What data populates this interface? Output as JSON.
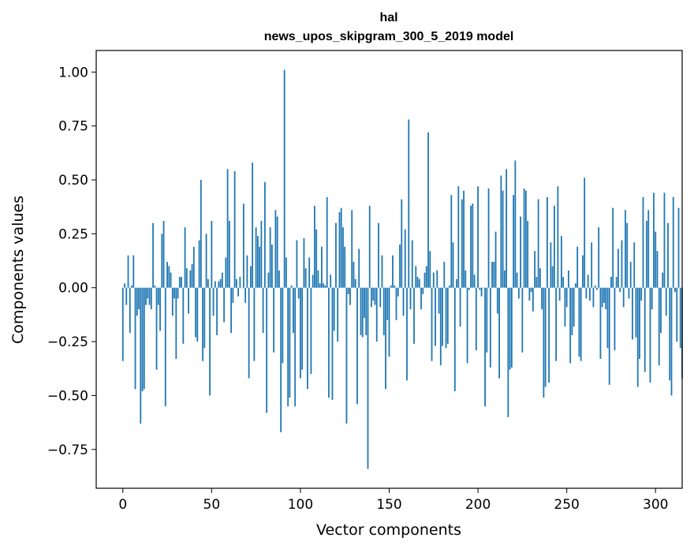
{
  "chart_data": {
    "type": "bar",
    "title": "hal",
    "subtitle": "news_upos_skipgram_300_5_2019 model",
    "xlabel": "Vector components",
    "ylabel": "Components values",
    "xlim": [
      -15,
      315
    ],
    "ylim": [
      -0.93,
      1.1
    ],
    "xticks": [
      0,
      50,
      100,
      150,
      200,
      250,
      300
    ],
    "xtick_labels": [
      "0",
      "50",
      "100",
      "150",
      "200",
      "250",
      "300"
    ],
    "yticks": [
      -0.75,
      -0.5,
      -0.25,
      0.0,
      0.25,
      0.5,
      0.75,
      1.0
    ],
    "ytick_labels": [
      "−0.75",
      "−0.50",
      "−0.25",
      "0.00",
      "0.25",
      "0.50",
      "0.75",
      "1.00"
    ],
    "grid": false,
    "bar_color": "#1f77b4",
    "values": [
      -0.34,
      0.02,
      -0.08,
      0.15,
      -0.21,
      0.01,
      0.15,
      -0.47,
      -0.13,
      -0.1,
      -0.63,
      -0.48,
      -0.47,
      -0.08,
      -0.05,
      -0.08,
      -0.1,
      0.3,
      0.01,
      -0.38,
      -0.08,
      -0.2,
      0.25,
      0.31,
      -0.55,
      0.12,
      0.1,
      0.07,
      -0.13,
      -0.05,
      -0.33,
      -0.05,
      0.05,
      0.05,
      -0.26,
      0.28,
      0.09,
      -0.12,
      0.08,
      0.11,
      0.19,
      -0.23,
      -0.25,
      0.22,
      0.5,
      -0.34,
      -0.28,
      0.25,
      0.04,
      -0.5,
      0.31,
      -0.13,
      0.03,
      -0.22,
      0.03,
      0.04,
      0.07,
      -0.16,
      0.14,
      0.55,
      0.31,
      -0.21,
      -0.07,
      0.54,
      0.04,
      -0.04,
      0.05,
      0.0,
      0.39,
      -0.07,
      0.15,
      -0.42,
      0.1,
      0.58,
      -0.34,
      0.28,
      0.24,
      0.19,
      0.31,
      -0.21,
      0.49,
      -0.58,
      0.07,
      0.28,
      0.2,
      -0.3,
      0.36,
      0.33,
      0.08,
      -0.67,
      -0.35,
      1.01,
      0.14,
      -0.55,
      -0.51,
      0.01,
      -0.21,
      -0.55,
      0.22,
      -0.05,
      -0.42,
      -0.38,
      0.23,
      0.09,
      -0.47,
      0.14,
      -0.4,
      0.06,
      0.38,
      0.27,
      0.08,
      0.02,
      0.19,
      0.02,
      0.01,
      0.42,
      -0.51,
      0.06,
      -0.52,
      -0.2,
      0.3,
      -0.25,
      0.35,
      0.37,
      0.28,
      0.19,
      -0.63,
      -0.03,
      -0.08,
      0.36,
      0.12,
      0.04,
      -0.54,
      0.18,
      -0.22,
      -0.23,
      -0.14,
      -0.22,
      -0.84,
      0.38,
      -0.09,
      -0.06,
      -0.08,
      -0.25,
      0.3,
      -0.09,
      0.15,
      -0.22,
      -0.47,
      -0.15,
      -0.32,
      0.01,
      0.15,
      0.01,
      -0.15,
      -0.04,
      0.2,
      0.41,
      -0.13,
      0.27,
      -0.43,
      0.78,
      -0.1,
      0.22,
      -0.26,
      0.1,
      0.05,
      0.04,
      -0.1,
      -0.03,
      0.07,
      0.1,
      0.72,
      0.17,
      -0.34,
      0.07,
      -0.27,
      0.08,
      -0.12,
      -0.36,
      -0.27,
      0.12,
      -0.28,
      -0.26,
      0.01,
      0.43,
      0.21,
      -0.48,
      0.04,
      0.47,
      -0.18,
      0.41,
      0.45,
      0.08,
      -0.35,
      -0.01,
      0.38,
      0.39,
      0.06,
      -0.29,
      0.47,
      -0.01,
      -0.04,
      0.0,
      -0.55,
      -0.3,
      0.46,
      -0.37,
      0.12,
      0.12,
      0.26,
      -0.12,
      -0.42,
      0.52,
      0.45,
      0.08,
      0.55,
      -0.6,
      -0.38,
      -0.37,
      0.43,
      0.59,
      0.07,
      -0.05,
      0.33,
      -0.3,
      0.46,
      0.45,
      0.31,
      -0.06,
      -0.02,
      -0.11,
      0.17,
      0.05,
      0.41,
      0.09,
      -0.1,
      -0.51,
      -0.46,
      0.42,
      -0.44,
      0.21,
      0.1,
      0.38,
      -0.34,
      0.47,
      -0.06,
      0.24,
      0.05,
      -0.18,
      -0.09,
      0.08,
      -0.35,
      -0.22,
      -0.18,
      0.02,
      0.19,
      -0.32,
      -0.34,
      0.15,
      0.51,
      -0.05,
      0.06,
      -0.06,
      0.21,
      -0.09,
      0.01,
      -0.01,
      0.28,
      -0.33,
      -0.09,
      -0.07,
      -0.1,
      -0.28,
      -0.45,
      0.05,
      0.37,
      -0.29,
      0.05,
      0.18,
      -0.02,
      0.22,
      -0.09,
      0.36,
      0.3,
      -0.05,
      0.12,
      -0.24,
      0.21,
      -0.23,
      -0.46,
      -0.33,
      -0.06,
      0.42,
      -0.39,
      0.31,
      0.36,
      -0.44,
      -0.1,
      0.44,
      0.26,
      0.17,
      -0.36,
      -0.21,
      0.07,
      0.44,
      -0.13,
      0.3,
      -0.43,
      -0.5,
      0.42,
      -0.02,
      -0.25,
      0.37,
      -0.28,
      -0.42
    ]
  }
}
